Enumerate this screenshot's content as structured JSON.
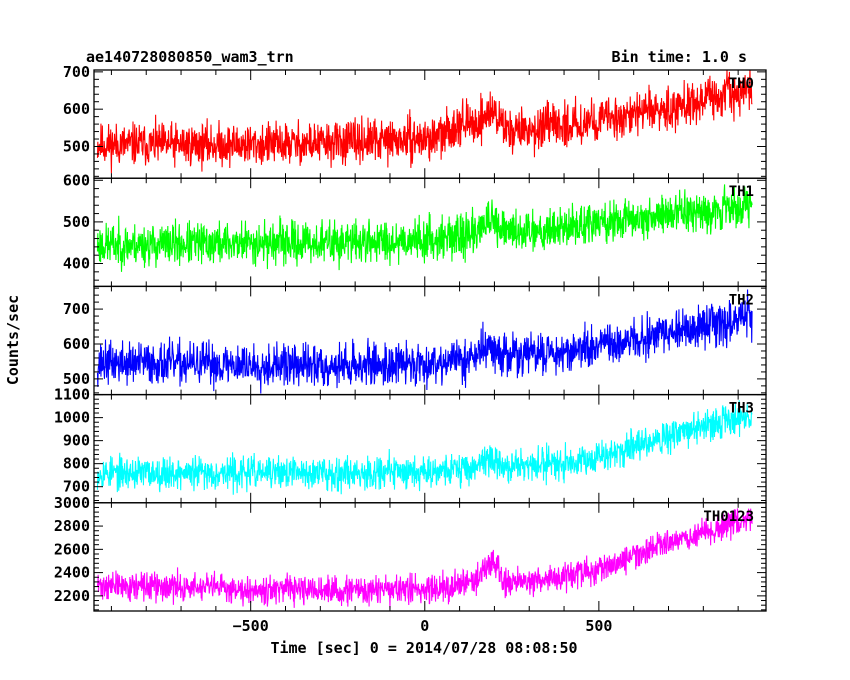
{
  "header": {
    "left_title": "ae140728080850_wam3_trn",
    "right_title": "Bin time: 1.0 s"
  },
  "chart_data": {
    "type": "line",
    "xlabel": "Time [sec] 0 = 2014/07/28 08:08:50",
    "ylabel": "Counts/sec",
    "xlim": [
      -950,
      980
    ],
    "x_ticks": [
      -500,
      0,
      500
    ],
    "x_tick_labels": [
      "−500",
      "0",
      "500"
    ],
    "x_data_range": [
      -940,
      940
    ],
    "panels": [
      {
        "name": "TH0",
        "color": "#ff0000",
        "ylim": [
          415,
          705
        ],
        "y_ticks": [
          500,
          600,
          700
        ],
        "y_tick_labels": [
          "500",
          "600",
          "700"
        ],
        "trend": [
          [
            -940,
            505
          ],
          [
            -800,
            505
          ],
          [
            -500,
            505
          ],
          [
            -250,
            510
          ],
          [
            0,
            520
          ],
          [
            150,
            545
          ],
          [
            300,
            545
          ],
          [
            500,
            570
          ],
          [
            700,
            605
          ],
          [
            940,
            650
          ]
        ],
        "noise": 28,
        "features": [
          [
            100,
            30,
            20
          ],
          [
            180,
            35,
            25
          ],
          [
            200,
            20,
            15
          ]
        ],
        "seed": 11
      },
      {
        "name": "TH1",
        "color": "#00ff00",
        "ylim": [
          345,
          605
        ],
        "y_ticks": [
          400,
          500,
          600
        ],
        "y_tick_labels": [
          "400",
          "500",
          "600"
        ],
        "trend": [
          [
            -940,
            445
          ],
          [
            -800,
            445
          ],
          [
            -500,
            450
          ],
          [
            -250,
            450
          ],
          [
            0,
            458
          ],
          [
            150,
            470
          ],
          [
            300,
            480
          ],
          [
            500,
            495
          ],
          [
            700,
            520
          ],
          [
            940,
            540
          ]
        ],
        "noise": 25,
        "features": [
          [
            180,
            30,
            20
          ]
        ],
        "seed": 23
      },
      {
        "name": "TH2",
        "color": "#0000ff",
        "ylim": [
          455,
          765
        ],
        "y_ticks": [
          500,
          600,
          700
        ],
        "y_tick_labels": [
          "500",
          "600",
          "700"
        ],
        "trend": [
          [
            -940,
            545
          ],
          [
            -800,
            545
          ],
          [
            -500,
            540
          ],
          [
            -250,
            538
          ],
          [
            0,
            545
          ],
          [
            150,
            560
          ],
          [
            300,
            570
          ],
          [
            500,
            590
          ],
          [
            700,
            630
          ],
          [
            940,
            680
          ]
        ],
        "noise": 30,
        "features": [
          [
            180,
            30,
            20
          ]
        ],
        "seed": 37
      },
      {
        "name": "TH3",
        "color": "#00ffff",
        "ylim": [
          630,
          1100
        ],
        "y_ticks": [
          700,
          800,
          900,
          1000,
          1100
        ],
        "y_tick_labels": [
          "700",
          "800",
          "900",
          "1000",
          "1100"
        ],
        "trend": [
          [
            -940,
            760
          ],
          [
            -800,
            760
          ],
          [
            -500,
            760
          ],
          [
            -250,
            760
          ],
          [
            0,
            770
          ],
          [
            150,
            780
          ],
          [
            300,
            790
          ],
          [
            500,
            830
          ],
          [
            700,
            920
          ],
          [
            940,
            1010
          ]
        ],
        "noise": 35,
        "features": [
          [
            180,
            40,
            20
          ]
        ],
        "seed": 53
      },
      {
        "name": "TH0123",
        "color": "#ff00ff",
        "ylim": [
          2070,
          3000
        ],
        "y_ticks": [
          2200,
          2400,
          2600,
          2800,
          3000
        ],
        "y_tick_labels": [
          "2200",
          "2400",
          "2600",
          "2800",
          "3000"
        ],
        "trend": [
          [
            -940,
            2290
          ],
          [
            -800,
            2280
          ],
          [
            -500,
            2260
          ],
          [
            -250,
            2240
          ],
          [
            0,
            2260
          ],
          [
            150,
            2310
          ],
          [
            300,
            2330
          ],
          [
            500,
            2420
          ],
          [
            700,
            2650
          ],
          [
            940,
            2880
          ]
        ],
        "noise": 60,
        "features": [
          [
            180,
            130,
            20
          ],
          [
            200,
            80,
            15
          ]
        ],
        "seed": 71
      }
    ]
  }
}
